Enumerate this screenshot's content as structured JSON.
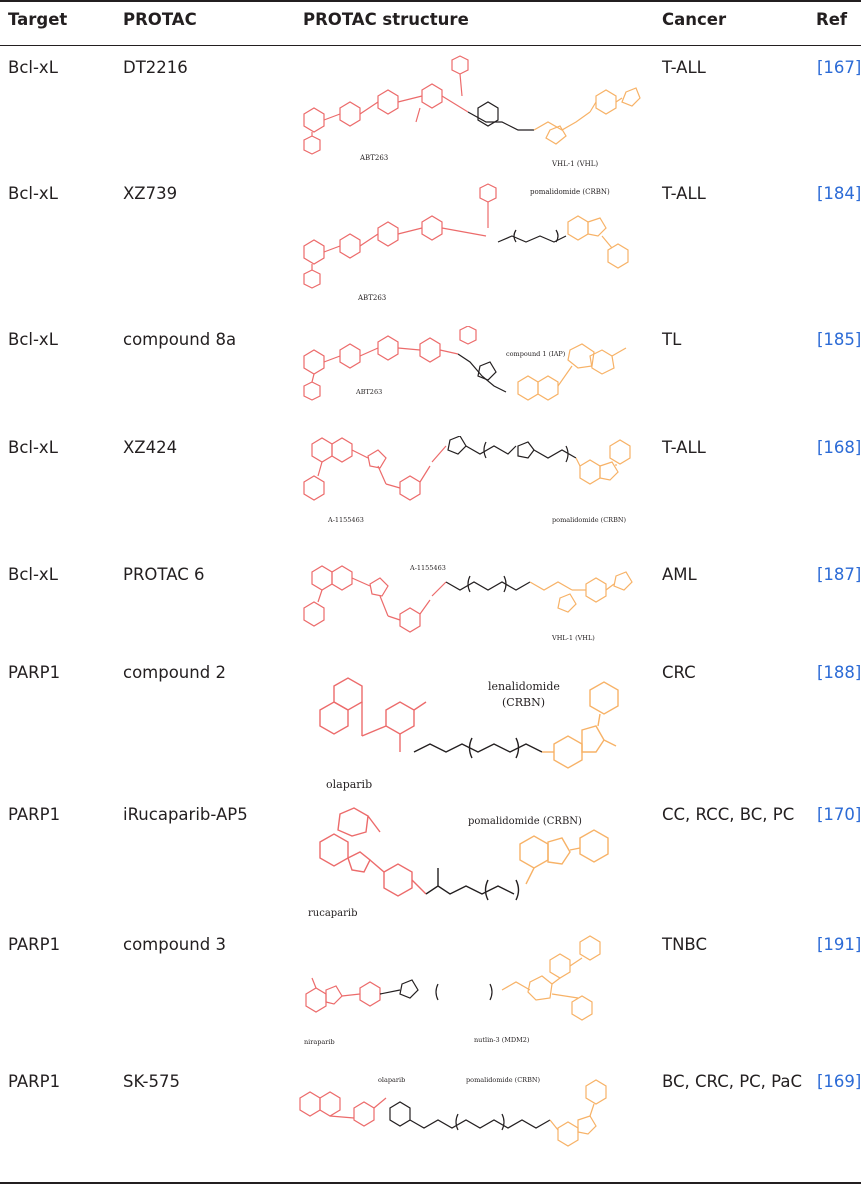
{
  "headers": {
    "target": "Target",
    "protac": "PROTAC",
    "structure": "PROTAC structure",
    "cancer": "Cancer",
    "ref": "Ref"
  },
  "colors": {
    "warhead": "#ec6b6b",
    "e3_ligand": "#f7b267",
    "linker": "#231f20",
    "ref_link": "#2c6bd6"
  },
  "rows": [
    {
      "target": "Bcl-xL",
      "protac": "DT2216",
      "cancer": "T-ALL",
      "ref": "[167]",
      "labels": [
        "ABT263",
        "VHL-1 (VHL)"
      ]
    },
    {
      "target": "Bcl-xL",
      "protac": "XZ739",
      "cancer": "T-ALL",
      "ref": "[184]",
      "labels": [
        "pomalidomide (CRBN)",
        "ABT263"
      ]
    },
    {
      "target": "Bcl-xL",
      "protac": "compound 8a",
      "cancer": "TL",
      "ref": "[185]",
      "labels": [
        "compound 1 (IAP)",
        "ABT263"
      ]
    },
    {
      "target": "Bcl-xL",
      "protac": "XZ424",
      "cancer": "T-ALL",
      "ref": "[168]",
      "labels": [
        "A-1155463",
        "pomalidomide (CRBN)"
      ]
    },
    {
      "target": "Bcl-xL",
      "protac": "PROTAC 6",
      "cancer": "AML",
      "ref": "[187]",
      "labels": [
        "A-1155463",
        "VHL-1 (VHL)"
      ]
    },
    {
      "target": "PARP1",
      "protac": "compound 2",
      "cancer": "CRC",
      "ref": "[188]",
      "labels": [
        "lenalidomide",
        "(CRBN)",
        "olaparib"
      ]
    },
    {
      "target": "PARP1",
      "protac": "iRucaparib-AP5",
      "cancer": "CC, RCC, BC, PC",
      "ref": "[170]",
      "labels": [
        "pomalidomide (CRBN)",
        "rucaparib"
      ]
    },
    {
      "target": "PARP1",
      "protac": "compound 3",
      "cancer": "TNBC",
      "ref": "[191]",
      "labels": [
        "niraparib",
        "nutlin-3 (MDM2)"
      ]
    },
    {
      "target": "PARP1",
      "protac": "SK-575",
      "cancer": "BC, CRC, PC, PaC",
      "ref": "[169]",
      "labels": [
        "olaparib",
        "pomalidomide (CRBN)"
      ]
    }
  ]
}
